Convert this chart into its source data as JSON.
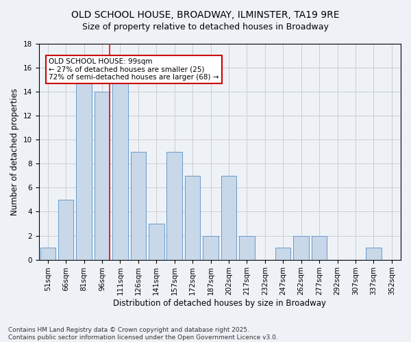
{
  "title": "OLD SCHOOL HOUSE, BROADWAY, ILMINSTER, TA19 9RE",
  "subtitle": "Size of property relative to detached houses in Broadway",
  "xlabel": "Distribution of detached houses by size in Broadway",
  "ylabel": "Number of detached properties",
  "categories": [
    "51sqm",
    "66sqm",
    "81sqm",
    "96sqm",
    "111sqm",
    "126sqm",
    "141sqm",
    "157sqm",
    "172sqm",
    "187sqm",
    "202sqm",
    "217sqm",
    "232sqm",
    "247sqm",
    "262sqm",
    "277sqm",
    "292sqm",
    "307sqm",
    "337sqm",
    "352sqm"
  ],
  "values": [
    1,
    5,
    15,
    14,
    15,
    9,
    3,
    9,
    7,
    2,
    7,
    2,
    0,
    1,
    2,
    2,
    0,
    0,
    1,
    0
  ],
  "bar_color": "#c8d8e8",
  "bar_edge_color": "#6699cc",
  "red_line_x": 3.425,
  "annotation_text": "OLD SCHOOL HOUSE: 99sqm\n← 27% of detached houses are smaller (25)\n72% of semi-detached houses are larger (68) →",
  "annotation_box_color": "#ffffff",
  "annotation_box_edge": "#cc0000",
  "ylim": [
    0,
    18
  ],
  "yticks": [
    0,
    2,
    4,
    6,
    8,
    10,
    12,
    14,
    16,
    18
  ],
  "background_color": "#eef2f7",
  "plot_bg_color": "#eef2f7",
  "footer": "Contains HM Land Registry data © Crown copyright and database right 2025.\nContains public sector information licensed under the Open Government Licence v3.0.",
  "title_fontsize": 10,
  "subtitle_fontsize": 9,
  "axis_label_fontsize": 8.5,
  "tick_fontsize": 7.5,
  "annotation_fontsize": 7.5,
  "footer_fontsize": 6.5
}
